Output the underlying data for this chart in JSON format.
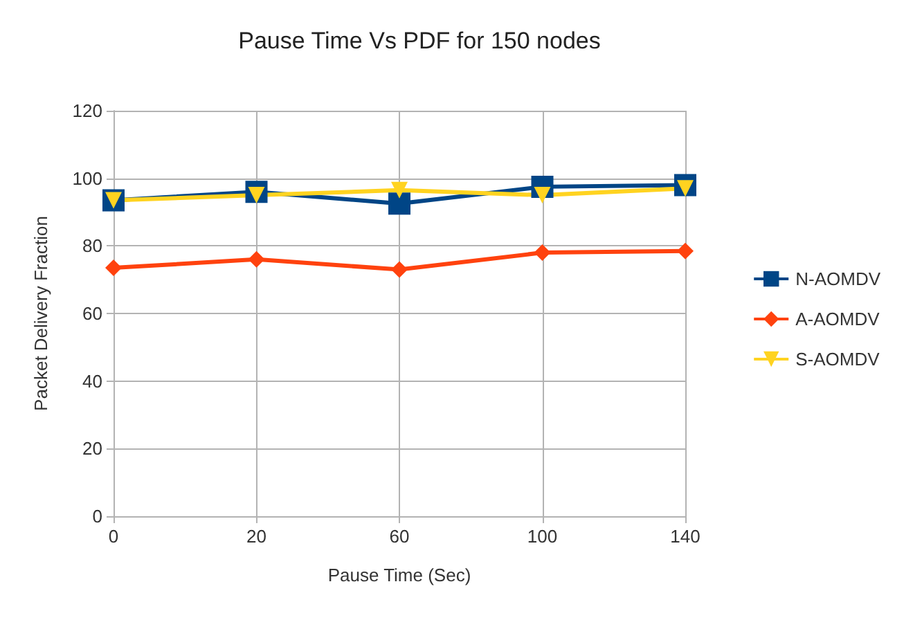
{
  "chart_data": {
    "type": "line",
    "title": "Pause Time Vs PDF for 150 nodes",
    "xlabel": "Pause Time (Sec)",
    "ylabel": "Packet Delivery Fraction",
    "categories": [
      "0",
      "20",
      "60",
      "100",
      "140"
    ],
    "ylim": [
      0,
      120
    ],
    "yticks": [
      0,
      20,
      40,
      60,
      80,
      100,
      120
    ],
    "grid": true,
    "legend": "right",
    "series": [
      {
        "name": "N-AOMDV",
        "color": "#004586",
        "marker": "square",
        "values": [
          93.5,
          96,
          92.5,
          97.5,
          98
        ]
      },
      {
        "name": "A-AOMDV",
        "color": "#ff420e",
        "marker": "diamond",
        "values": [
          73.5,
          76,
          73,
          78,
          78.5
        ]
      },
      {
        "name": "S-AOMDV",
        "color": "#ffd320",
        "marker": "triangle",
        "values": [
          93.5,
          95,
          96.5,
          95,
          97
        ]
      }
    ]
  }
}
